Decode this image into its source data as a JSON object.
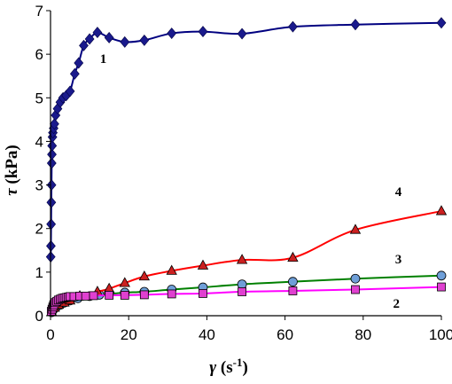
{
  "chart_data": {
    "type": "scatter",
    "x_symbol": "γ",
    "x_unit_prefix": " (s",
    "x_unit_exp": "-1",
    "x_unit_suffix": ")",
    "y_symbol": "τ",
    "y_unit": " (kPa)",
    "xlim": [
      0,
      100
    ],
    "ylim": [
      0,
      7
    ],
    "x_ticks": [
      0,
      20,
      40,
      60,
      80,
      100
    ],
    "y_ticks": [
      0,
      1,
      2,
      3,
      4,
      5,
      6,
      7
    ],
    "grid": false,
    "series": [
      {
        "name": "1",
        "color": "#000080",
        "marker": "diamond",
        "marker_color": "#1a1a8c",
        "points": [
          [
            0.05,
            1.35
          ],
          [
            0.1,
            1.6
          ],
          [
            0.15,
            2.1
          ],
          [
            0.2,
            2.6
          ],
          [
            0.25,
            3.0
          ],
          [
            0.3,
            3.5
          ],
          [
            0.35,
            3.7
          ],
          [
            0.4,
            3.9
          ],
          [
            0.5,
            4.1
          ],
          [
            0.6,
            4.2
          ],
          [
            0.8,
            4.3
          ],
          [
            1.0,
            4.4
          ],
          [
            1.3,
            4.6
          ],
          [
            1.8,
            4.75
          ],
          [
            2.5,
            4.9
          ],
          [
            3.2,
            5.0
          ],
          [
            4.0,
            5.05
          ],
          [
            5.0,
            5.15
          ],
          [
            6.2,
            5.55
          ],
          [
            7.2,
            5.8
          ],
          [
            8.5,
            6.2
          ],
          [
            10.0,
            6.35
          ],
          [
            12.0,
            6.5
          ],
          [
            15.0,
            6.38
          ],
          [
            19.0,
            6.28
          ],
          [
            24.0,
            6.32
          ],
          [
            31.0,
            6.48
          ],
          [
            39.0,
            6.52
          ],
          [
            49.0,
            6.47
          ],
          [
            62.0,
            6.63
          ],
          [
            78.0,
            6.68
          ],
          [
            100.0,
            6.72
          ]
        ],
        "label_x": 13.5,
        "label_y": 5.8
      },
      {
        "name": "2",
        "color": "#ff00ff",
        "marker": "square",
        "marker_color": "#e040d0",
        "points": [
          [
            0.2,
            0.1
          ],
          [
            0.4,
            0.15
          ],
          [
            0.6,
            0.2
          ],
          [
            0.8,
            0.25
          ],
          [
            1.2,
            0.3
          ],
          [
            1.6,
            0.33
          ],
          [
            2.0,
            0.36
          ],
          [
            2.5,
            0.38
          ],
          [
            3.0,
            0.4
          ],
          [
            3.5,
            0.41
          ],
          [
            4.0,
            0.42
          ],
          [
            4.5,
            0.43
          ],
          [
            5.0,
            0.44
          ],
          [
            6.0,
            0.44
          ],
          [
            7.5,
            0.45
          ],
          [
            9.0,
            0.45
          ],
          [
            11.0,
            0.46
          ],
          [
            15.0,
            0.47
          ],
          [
            19.0,
            0.47
          ],
          [
            24.0,
            0.48
          ],
          [
            31.0,
            0.5
          ],
          [
            39.0,
            0.51
          ],
          [
            49.0,
            0.55
          ],
          [
            62.0,
            0.57
          ],
          [
            78.0,
            0.6
          ],
          [
            100.0,
            0.66
          ]
        ],
        "label_x": 88.5,
        "label_y": 0.18
      },
      {
        "name": "3",
        "color": "#008000",
        "marker": "circle",
        "marker_color": "#6f9fd8",
        "points": [
          [
            0.3,
            0.08
          ],
          [
            0.8,
            0.15
          ],
          [
            1.5,
            0.2
          ],
          [
            2.5,
            0.25
          ],
          [
            3.5,
            0.3
          ],
          [
            5.0,
            0.35
          ],
          [
            7.0,
            0.4
          ],
          [
            10.0,
            0.45
          ],
          [
            12.5,
            0.48
          ],
          [
            15.0,
            0.5
          ],
          [
            19.0,
            0.53
          ],
          [
            24.0,
            0.55
          ],
          [
            31.0,
            0.6
          ],
          [
            39.0,
            0.65
          ],
          [
            49.0,
            0.72
          ],
          [
            62.0,
            0.78
          ],
          [
            78.0,
            0.85
          ],
          [
            100.0,
            0.92
          ]
        ],
        "label_x": 89,
        "label_y": 1.2
      },
      {
        "name": "4",
        "color": "#ff0000",
        "marker": "triangle",
        "marker_color": "#cc2020",
        "points": [
          [
            0.3,
            0.08
          ],
          [
            1.0,
            0.18
          ],
          [
            2.0,
            0.25
          ],
          [
            3.5,
            0.3
          ],
          [
            5.0,
            0.35
          ],
          [
            7.5,
            0.45
          ],
          [
            12.0,
            0.55
          ],
          [
            15.0,
            0.62
          ],
          [
            19.0,
            0.75
          ],
          [
            24.0,
            0.9
          ],
          [
            31.0,
            1.03
          ],
          [
            39.0,
            1.15
          ],
          [
            49.0,
            1.28
          ],
          [
            62.0,
            1.33
          ],
          [
            78.0,
            1.97
          ],
          [
            100.0,
            2.4
          ]
        ],
        "label_x": 89,
        "label_y": 2.75
      }
    ]
  }
}
